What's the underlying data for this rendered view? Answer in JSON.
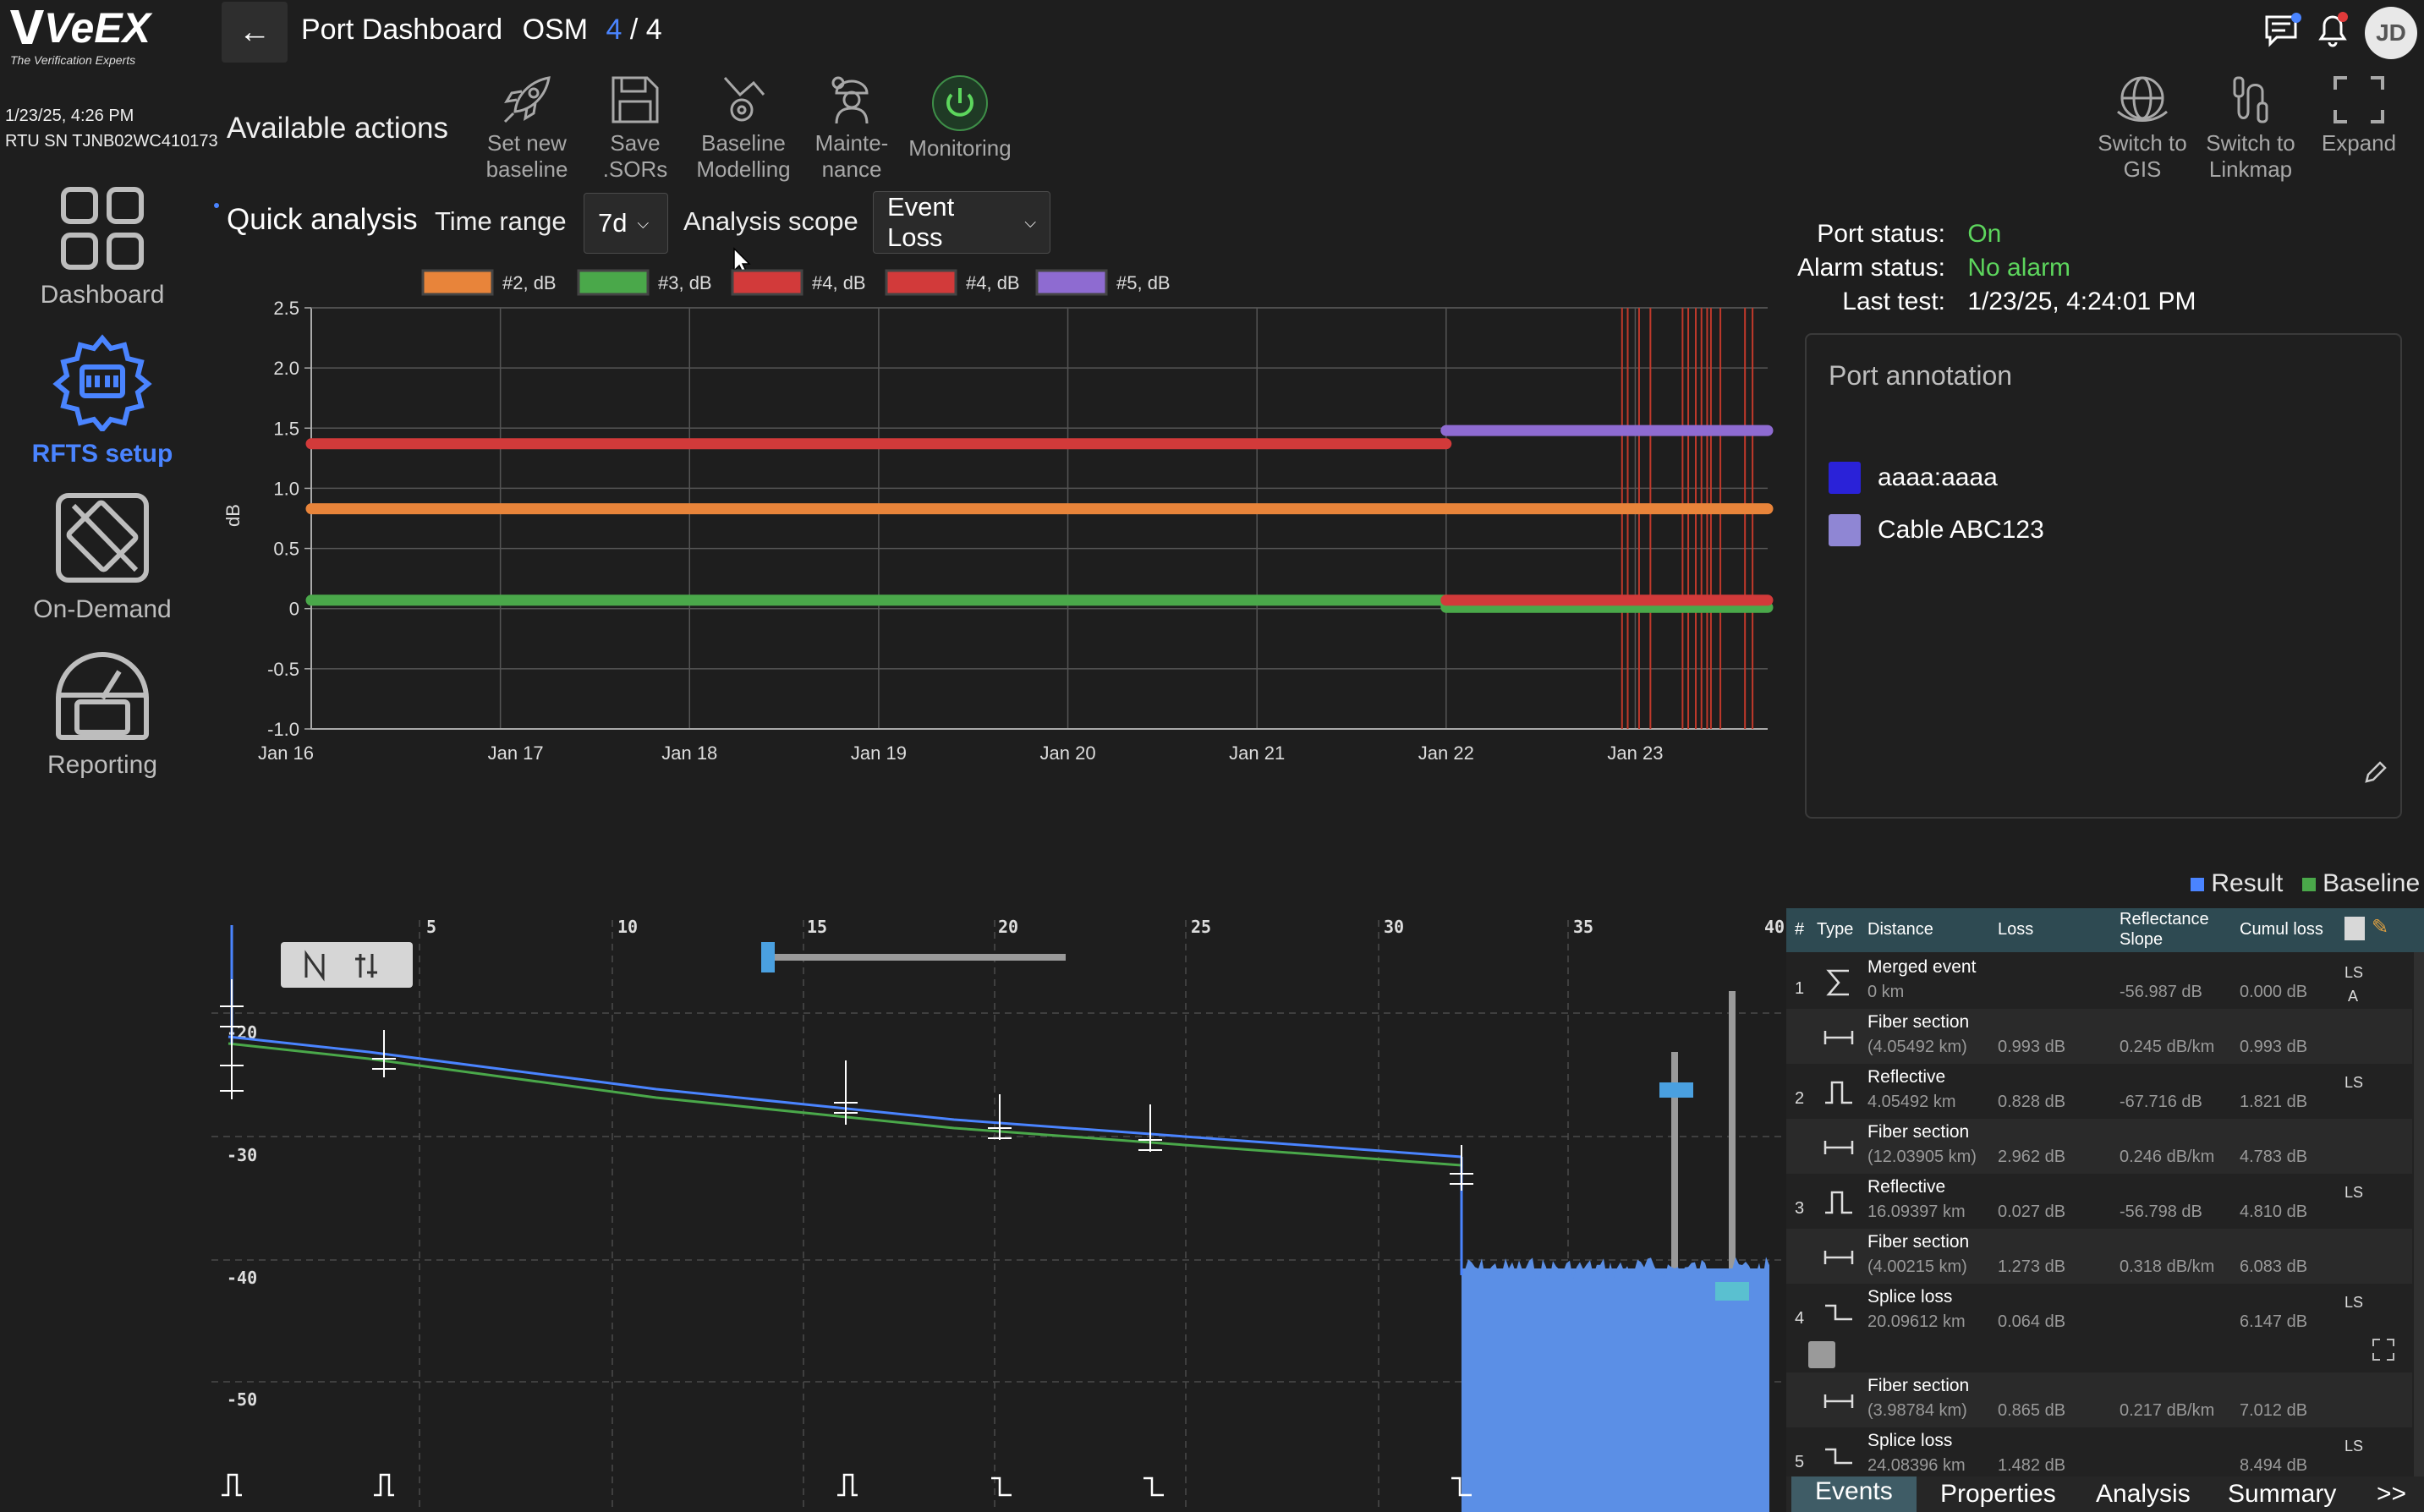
{
  "brand": {
    "logo": "VeEX",
    "tagline": "The Verification Experts"
  },
  "device": {
    "datetime": "1/23/25, 4:26 PM",
    "rtu": "RTU SN TJNB02WC410173"
  },
  "sidebar": {
    "items": [
      {
        "label": "Dashboard",
        "icon": "grid-icon",
        "active": false
      },
      {
        "label": "RFTS setup",
        "icon": "gear-icon",
        "active": true
      },
      {
        "label": "On-Demand",
        "icon": "on-demand-icon",
        "active": false
      },
      {
        "label": "Reporting",
        "icon": "gauge-icon",
        "active": false
      }
    ]
  },
  "header": {
    "title": "Port Dashboard",
    "module": "OSM",
    "current": "4",
    "sep": "/",
    "total": "4",
    "user_initials": "JD"
  },
  "actions": {
    "title": "Available actions",
    "tools": [
      {
        "l1": "Set new",
        "l2": "baseline",
        "icon": "rocket-icon"
      },
      {
        "l1": "Save",
        "l2": ".SORs",
        "icon": "save-icon"
      },
      {
        "l1": "Baseline",
        "l2": "Modelling",
        "icon": "modelling-icon"
      },
      {
        "l1": "Mainte-",
        "l2": "nance",
        "icon": "maintenance-icon"
      },
      {
        "l1": "Monitoring",
        "l2": "",
        "icon": "power-icon"
      }
    ],
    "right_tools": [
      {
        "l1": "Switch to",
        "l2": "GIS",
        "icon": "globe-icon"
      },
      {
        "l1": "Switch to",
        "l2": "Linkmap",
        "icon": "linkmap-icon"
      },
      {
        "l1": "Expand",
        "l2": "",
        "icon": "expand-icon"
      }
    ]
  },
  "quick": {
    "title": "Quick analysis",
    "time_label": "Time range",
    "time_value": "7d",
    "scope_label": "Analysis scope",
    "scope_value": "Event Loss"
  },
  "port": {
    "status_label": "Port status:",
    "status": "On",
    "alarm_label": "Alarm status:",
    "alarm": "No alarm",
    "last_label": "Last test:",
    "last": "1/23/25, 4:24:01 PM"
  },
  "annotation": {
    "title": "Port annotation",
    "items": [
      {
        "label": "aaaa:aaaa",
        "color": "#2a22d8"
      },
      {
        "label": "Cable ABC123",
        "color": "#8f86d4"
      }
    ]
  },
  "chart_data": {
    "type": "line",
    "ylabel": "dB",
    "ylim": [
      -1.0,
      2.5
    ],
    "yticks": [
      "2.5",
      "2.0",
      "1.5",
      "1.0",
      "0.5",
      "0",
      "-0.5",
      "-1.0"
    ],
    "xticks": [
      "Jan 16",
      "Jan 17",
      "Jan 18",
      "Jan 19",
      "Jan 20",
      "Jan 21",
      "Jan 22",
      "Jan 23"
    ],
    "xlim_days": [
      16,
      23.7
    ],
    "legend_position": "top",
    "grid": true,
    "series": [
      {
        "name": "#2, dB",
        "color": "#e8843a",
        "points": [
          [
            16,
            0.83
          ],
          [
            23.7,
            0.83
          ]
        ]
      },
      {
        "name": "#3, dB",
        "color": "#4aa84a",
        "points": [
          [
            16,
            0.07
          ],
          [
            22,
            0.07
          ],
          [
            22,
            0.01
          ],
          [
            23.7,
            0.01
          ]
        ]
      },
      {
        "name": "#4, dB",
        "color": "#d23a3a",
        "points": [
          [
            16,
            1.37
          ],
          [
            22,
            1.37
          ]
        ]
      },
      {
        "name": "#4, dB",
        "color": "#d23a3a",
        "points": [
          [
            22,
            0.07
          ],
          [
            23.7,
            0.07
          ]
        ]
      },
      {
        "name": "#5, dB",
        "color": "#8e6bd1",
        "points": [
          [
            22,
            1.48
          ],
          [
            23.7,
            1.48
          ]
        ]
      }
    ],
    "red_event_lines_days": [
      22.93,
      22.96,
      23.02,
      23.08,
      23.25,
      23.28,
      23.32,
      23.35,
      23.38,
      23.4,
      23.45,
      23.58,
      23.62
    ]
  },
  "otdr": {
    "legend": {
      "result": "Result",
      "baseline": "Baseline",
      "result_color": "#4a84ff",
      "baseline_color": "#4aa84a"
    },
    "xticks": [
      "5",
      "10",
      "15",
      "20",
      "25",
      "30",
      "35",
      "40"
    ],
    "yticks": [
      "-20",
      "-30",
      "-40",
      "-50"
    ],
    "headers": {
      "num": "#",
      "type": "Type",
      "distance": "Distance",
      "loss": "Loss",
      "refl1": "Reflectance",
      "refl2": "Slope",
      "cumul": "Cumul loss"
    },
    "rows": [
      {
        "num": "1",
        "name": "Merged event",
        "dist": "0 km",
        "loss": "",
        "refl": "-56.987 dB",
        "cumul": "0.000 dB",
        "flag": "LS",
        "flag2": "A",
        "icon": "sigma-icon",
        "sec": false
      },
      {
        "num": "",
        "name": "Fiber section",
        "dist": "(4.05492 km)",
        "loss": "0.993 dB",
        "refl": "0.245 dB/km",
        "cumul": "0.993 dB",
        "flag": "",
        "flag2": "",
        "icon": "fiber-icon",
        "sec": true
      },
      {
        "num": "2",
        "name": "Reflective",
        "dist": "4.05492 km",
        "loss": "0.828 dB",
        "refl": "-67.716 dB",
        "cumul": "1.821 dB",
        "flag": "LS",
        "flag2": "",
        "icon": "reflective-icon",
        "sec": false
      },
      {
        "num": "",
        "name": "Fiber section",
        "dist": "(12.03905 km)",
        "loss": "2.962 dB",
        "refl": "0.246 dB/km",
        "cumul": "4.783 dB",
        "flag": "",
        "flag2": "",
        "icon": "fiber-icon",
        "sec": true
      },
      {
        "num": "3",
        "name": "Reflective",
        "dist": "16.09397 km",
        "loss": "0.027 dB",
        "refl": "-56.798 dB",
        "cumul": "4.810 dB",
        "flag": "LS",
        "flag2": "",
        "icon": "reflective-icon",
        "sec": false
      },
      {
        "num": "",
        "name": "Fiber section",
        "dist": "(4.00215 km)",
        "loss": "1.273 dB",
        "refl": "0.318 dB/km",
        "cumul": "6.083 dB",
        "flag": "",
        "flag2": "",
        "icon": "fiber-icon",
        "sec": true
      },
      {
        "num": "4",
        "name": "Splice loss",
        "dist": "20.09612 km",
        "loss": "0.064 dB",
        "refl": "",
        "cumul": "6.147 dB",
        "flag": "LS",
        "flag2": "",
        "icon": "splice-icon",
        "sec": false
      },
      {
        "num": "",
        "name": "Fiber section",
        "dist": "(3.98784 km)",
        "loss": "0.865 dB",
        "refl": "0.217 dB/km",
        "cumul": "7.012 dB",
        "flag": "",
        "flag2": "",
        "icon": "fiber-icon",
        "sec": true
      },
      {
        "num": "5",
        "name": "Splice loss",
        "dist": "24.08396 km",
        "loss": "1.482 dB",
        "refl": "",
        "cumul": "8.494 dB",
        "flag": "LS",
        "flag2": "",
        "icon": "splice-icon",
        "sec": false
      }
    ],
    "tabs": [
      "Events",
      "Properties",
      "Analysis",
      "Summary"
    ],
    "more": ">>"
  }
}
